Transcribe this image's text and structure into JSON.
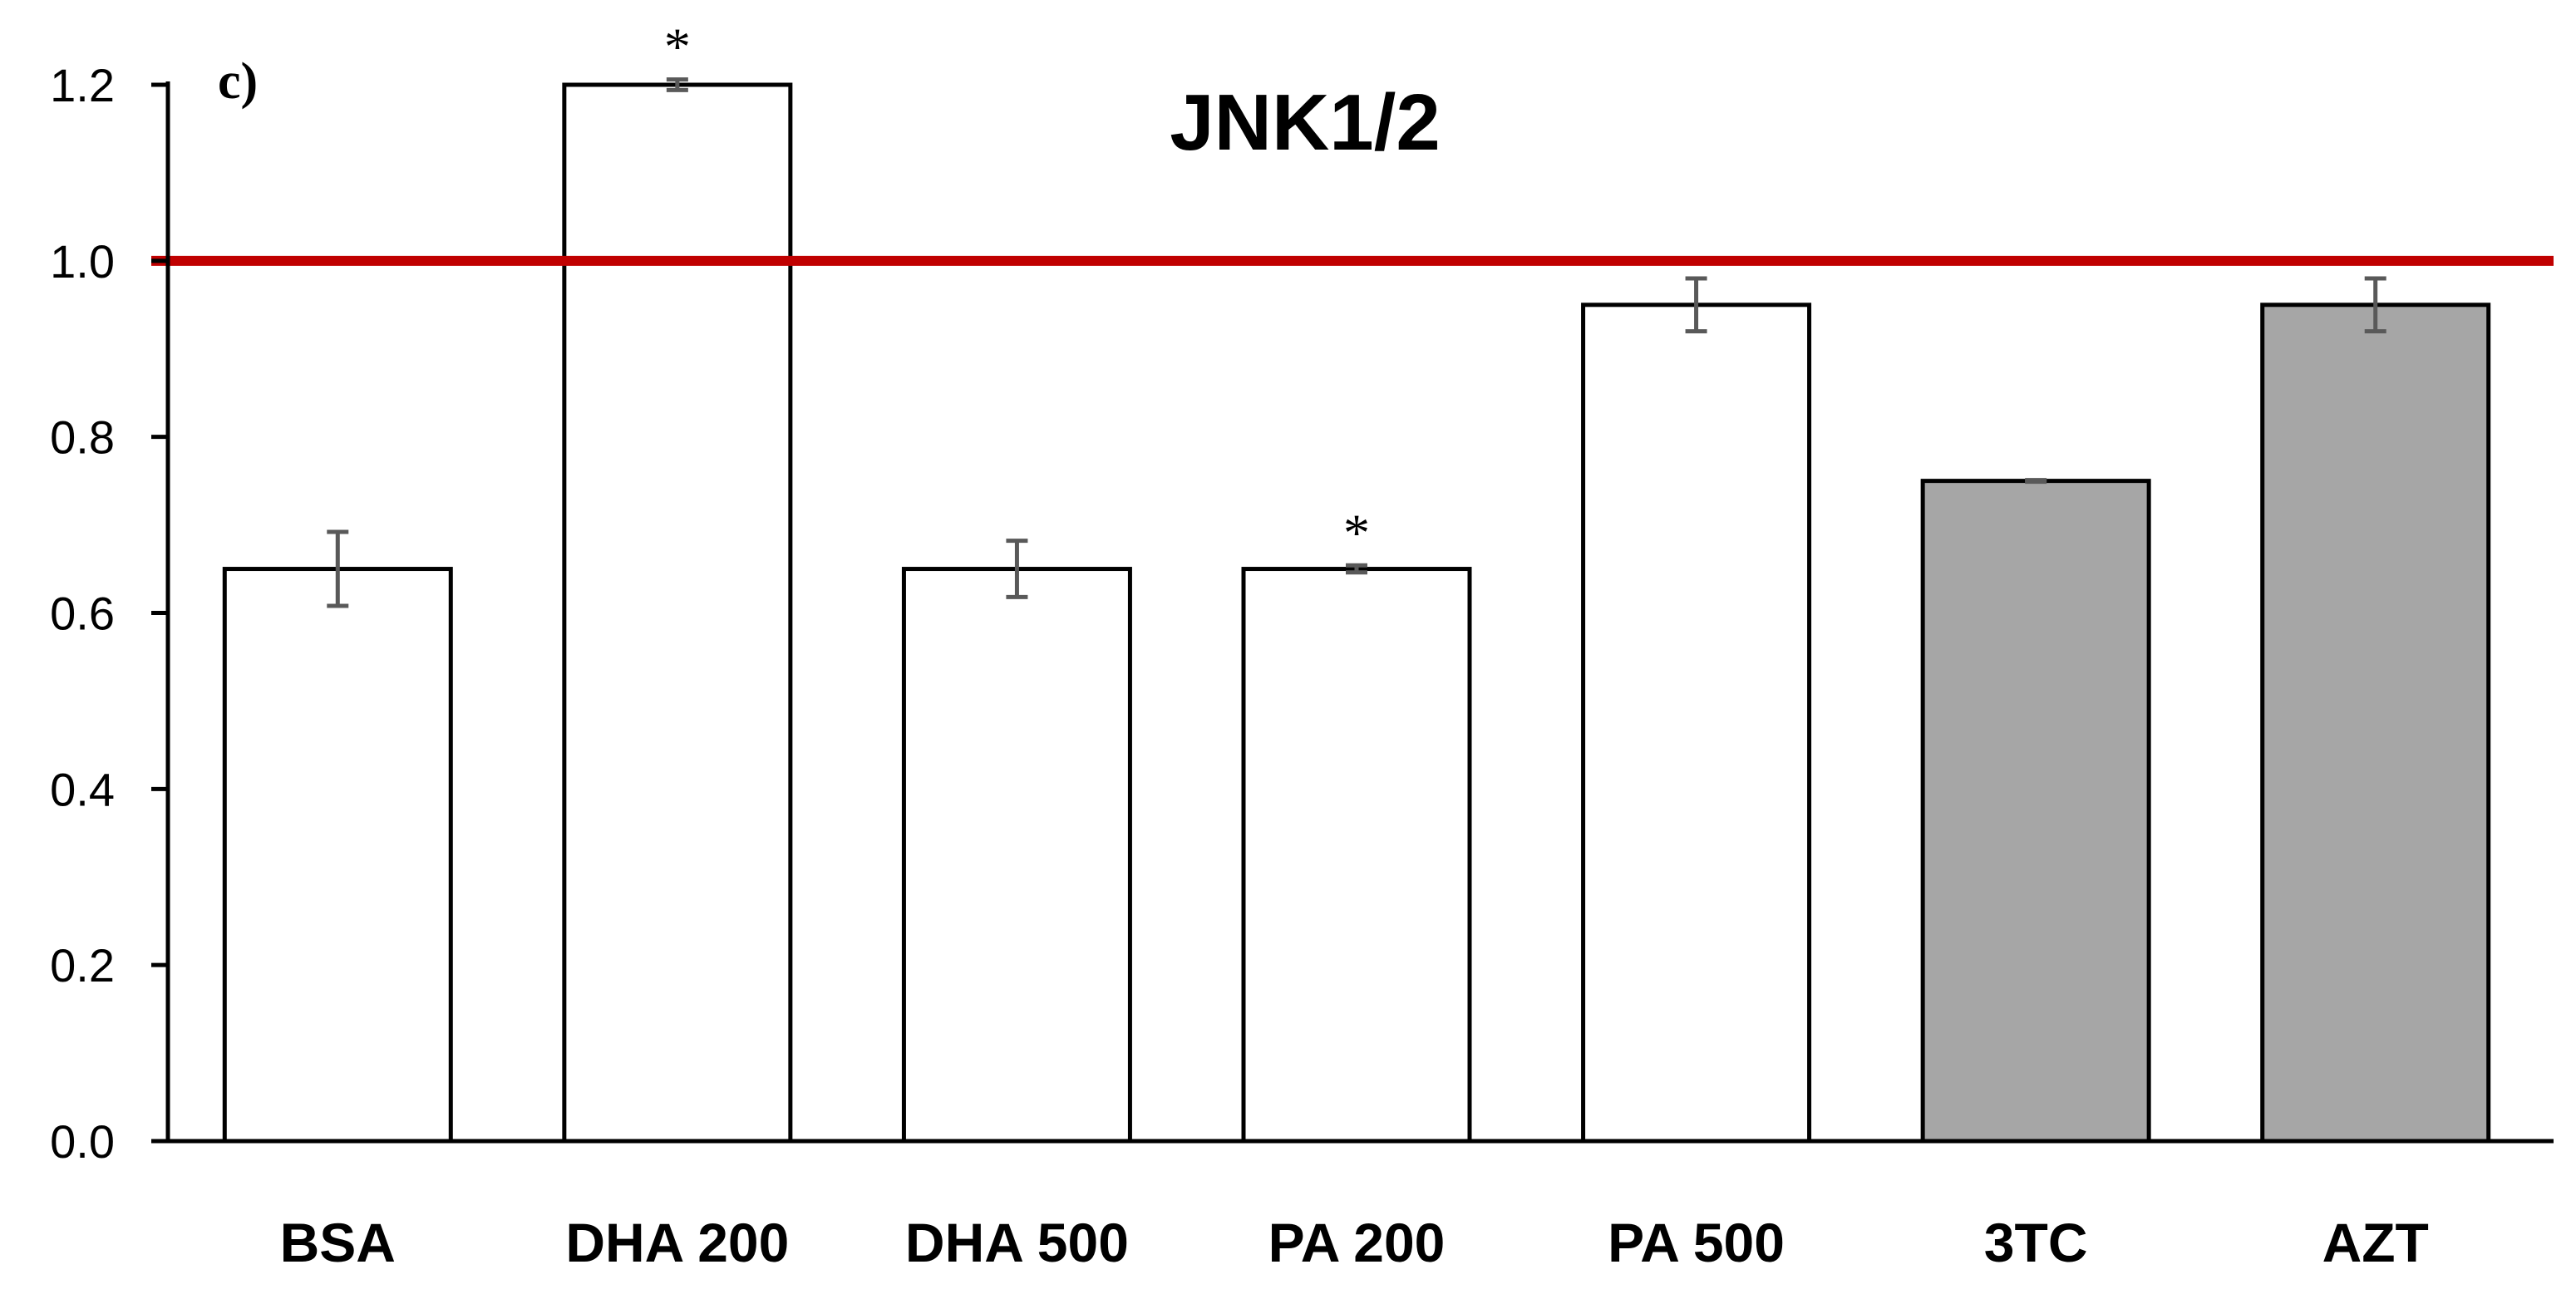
{
  "chart_data": {
    "type": "bar",
    "title": "JNK1/2",
    "panel_label": "c)",
    "xlabel": "",
    "ylabel": "",
    "ylim": [
      0,
      1.2
    ],
    "yticks": [
      "0.0",
      "0.2",
      "0.4",
      "0.6",
      "0.8",
      "1.0",
      "1.2"
    ],
    "categories": [
      "BSA",
      "DHA 200",
      "DHA 500",
      "PA 200",
      "PA 500",
      "3TC",
      "AZT"
    ],
    "values": [
      0.65,
      1.2,
      0.65,
      0.65,
      0.95,
      0.75,
      0.95
    ],
    "errors": [
      0.042,
      0.006,
      0.032,
      0.004,
      0.03,
      0.001,
      0.03
    ],
    "significance": [
      "",
      "*",
      "",
      "*",
      "",
      "",
      ""
    ],
    "bar_fills": [
      "#ffffff",
      "#ffffff",
      "#ffffff",
      "#ffffff",
      "#ffffff",
      "#a6a6a6",
      "#a6a6a6"
    ],
    "reference_line": {
      "y": 1.0,
      "color": "#c00000"
    },
    "grid": false,
    "legend": "none",
    "colors": {
      "axis": "#000000",
      "bar_edge": "#000000",
      "error_bar": "#595959"
    }
  }
}
